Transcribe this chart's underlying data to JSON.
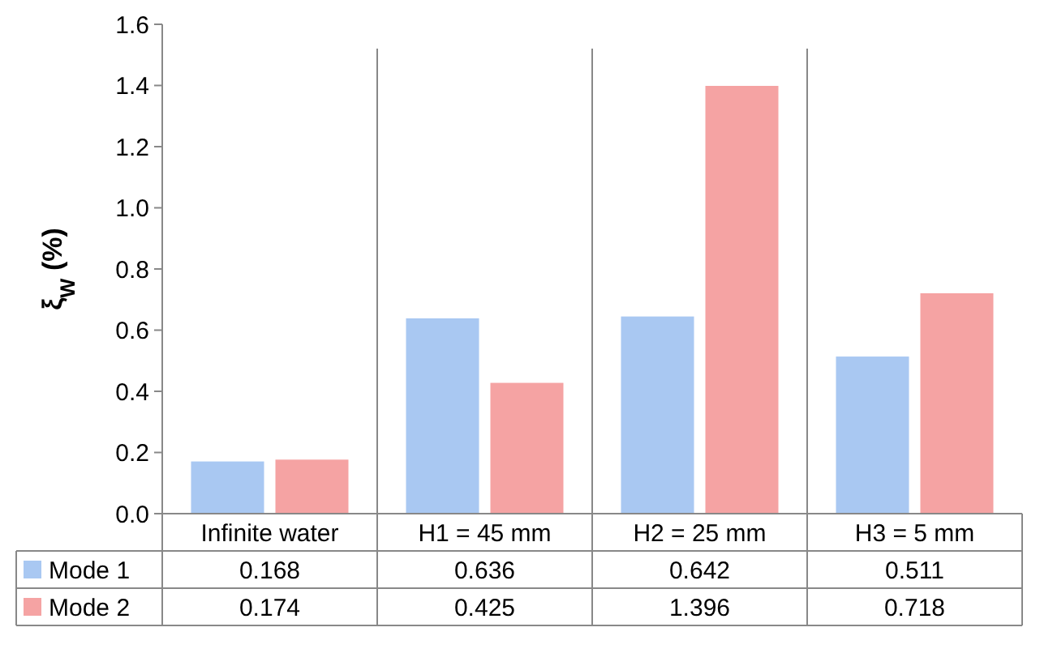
{
  "chart_data": {
    "type": "bar",
    "ylabel": "ξ$_{W}$ (%)",
    "categories": [
      "Infinite water",
      "H1 = 45 mm",
      "H2 = 25 mm",
      "H3 = 5 mm"
    ],
    "series": [
      {
        "name": "Mode 1",
        "color": "#a9c8f2",
        "values": [
          0.168,
          0.636,
          0.642,
          0.511
        ]
      },
      {
        "name": "Mode 2",
        "color": "#f5a3a3",
        "values": [
          0.174,
          0.425,
          1.396,
          0.718
        ]
      }
    ],
    "ylim": [
      0,
      1.6
    ],
    "yticks": [
      {
        "value": 0,
        "label": "0.0"
      },
      0.2,
      0.4,
      0.6,
      0.8,
      {
        "value": 1,
        "label": "1.0"
      },
      1.2,
      1.4,
      1.6
    ],
    "data_labels": true,
    "legend": "bottom",
    "grid": false
  }
}
